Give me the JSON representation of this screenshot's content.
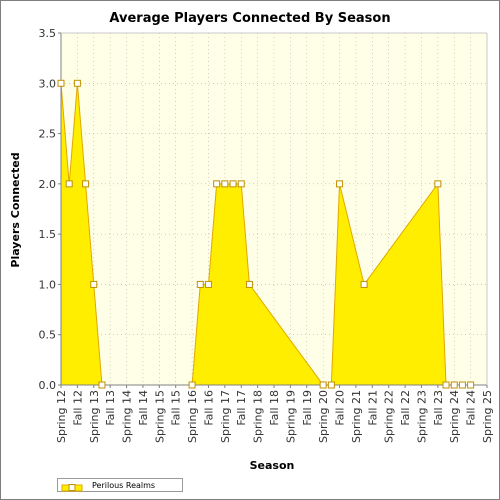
{
  "chart_data": {
    "type": "area",
    "title": "Average Players Connected By Season",
    "xlabel": "Season",
    "ylabel": "Players Connected",
    "ylim": [
      0,
      3.5
    ],
    "y_ticks": [
      "0.0",
      "0.5",
      "1.0",
      "1.5",
      "2.0",
      "2.5",
      "3.0",
      "3.5"
    ],
    "y_tick_values": [
      0,
      0.5,
      1.0,
      1.5,
      2.0,
      2.5,
      3.0,
      3.5
    ],
    "grid": true,
    "legend_placement": "bottom-left",
    "colors": {
      "fill": "#ffee00",
      "line": "#e0a800",
      "plot_bg": "#ffffe8",
      "grid": "#b0b0b0"
    },
    "x_tick_labels": [
      "Spring 12",
      "Fall 12",
      "Spring 13",
      "Fall 13",
      "Spring 14",
      "Fall 14",
      "Spring 15",
      "Fall 15",
      "Spring 16",
      "Fall 16",
      "Spring 17",
      "Fall 17",
      "Spring 18",
      "Fall 18",
      "Spring 19",
      "Fall 19",
      "Spring 20",
      "Fall 20",
      "Spring 21",
      "Fall 21",
      "Spring 22",
      "Fall 22",
      "Spring 23",
      "Fall 23",
      "Spring 24",
      "Fall 24",
      "Spring 25"
    ],
    "series": [
      {
        "name": "Perilous Realms",
        "points": [
          {
            "x": 0.0,
            "y": 3.0
          },
          {
            "x": 0.5,
            "y": 2.0
          },
          {
            "x": 1.0,
            "y": 3.0
          },
          {
            "x": 1.5,
            "y": 2.0
          },
          {
            "x": 2.0,
            "y": 1.0
          },
          {
            "x": 2.5,
            "y": 0.0
          },
          {
            "x": 8.0,
            "y": 0.0
          },
          {
            "x": 8.5,
            "y": 1.0
          },
          {
            "x": 9.0,
            "y": 1.0
          },
          {
            "x": 9.5,
            "y": 2.0
          },
          {
            "x": 10.0,
            "y": 2.0
          },
          {
            "x": 10.5,
            "y": 2.0
          },
          {
            "x": 11.0,
            "y": 2.0
          },
          {
            "x": 11.5,
            "y": 1.0
          },
          {
            "x": 16.0,
            "y": 0.0
          },
          {
            "x": 16.5,
            "y": 0.0
          },
          {
            "x": 17.0,
            "y": 2.0
          },
          {
            "x": 18.5,
            "y": 1.0
          },
          {
            "x": 23.0,
            "y": 2.0
          },
          {
            "x": 23.5,
            "y": 0.0
          },
          {
            "x": 24.0,
            "y": 0.0
          },
          {
            "x": 24.5,
            "y": 0.0
          },
          {
            "x": 25.0,
            "y": 0.0
          }
        ]
      }
    ]
  }
}
